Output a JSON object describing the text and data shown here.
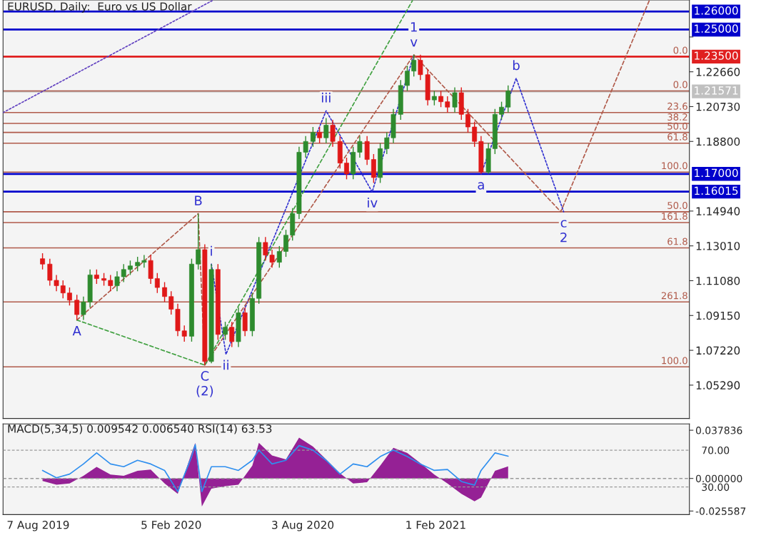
{
  "chart_data": [
    {
      "type": "candlestick",
      "title": "EURUSD, Daily:  Euro vs US Dollar",
      "x": [
        "2019-08-13",
        "2019-08-23",
        "2019-09-01",
        "2019-09-10",
        "2019-09-19",
        "2019-09-29",
        "2019-10-08",
        "2019-10-17",
        "2019-10-26",
        "2019-11-05",
        "2019-11-14",
        "2019-11-23",
        "2019-12-02",
        "2019-12-11",
        "2019-12-21",
        "2019-12-30",
        "2020-01-08",
        "2020-01-17",
        "2020-01-27",
        "2020-02-05",
        "2020-02-14",
        "2020-02-23",
        "2020-03-04",
        "2020-03-13",
        "2020-03-22",
        "2020-03-31",
        "2020-04-09",
        "2020-04-19",
        "2020-04-28",
        "2020-05-07",
        "2020-05-16",
        "2020-05-26",
        "2020-06-04",
        "2020-06-13",
        "2020-06-22",
        "2020-07-02",
        "2020-07-11",
        "2020-07-20",
        "2020-07-29",
        "2020-08-07",
        "2020-08-17",
        "2020-08-26",
        "2020-09-04",
        "2020-09-13",
        "2020-09-23",
        "2020-10-02",
        "2020-10-11",
        "2020-10-20",
        "2020-10-30",
        "2020-11-08",
        "2020-11-17",
        "2020-11-26",
        "2020-12-05",
        "2020-12-15",
        "2020-12-24",
        "2021-01-02",
        "2021-01-11",
        "2021-01-21",
        "2021-01-30",
        "2021-02-08",
        "2021-02-17",
        "2021-02-27",
        "2021-03-08",
        "2021-03-17",
        "2021-03-26",
        "2021-04-04",
        "2021-04-14",
        "2021-04-23",
        "2021-05-02",
        "2021-05-11"
      ],
      "ohlc": [
        [
          1.123,
          1.126,
          1.117,
          1.12
        ],
        [
          1.12,
          1.123,
          1.108,
          1.111
        ],
        [
          1.111,
          1.114,
          1.105,
          1.108
        ],
        [
          1.108,
          1.111,
          1.101,
          1.104
        ],
        [
          1.104,
          1.107,
          1.097,
          1.1
        ],
        [
          1.1,
          1.103,
          1.089,
          1.092
        ],
        [
          1.092,
          1.102,
          1.089,
          1.099
        ],
        [
          1.099,
          1.117,
          1.096,
          1.114
        ],
        [
          1.114,
          1.117,
          1.109,
          1.112
        ],
        [
          1.112,
          1.115,
          1.108,
          1.111
        ],
        [
          1.111,
          1.114,
          1.105,
          1.108
        ],
        [
          1.108,
          1.116,
          1.105,
          1.113
        ],
        [
          1.113,
          1.12,
          1.11,
          1.117
        ],
        [
          1.117,
          1.122,
          1.114,
          1.119
        ],
        [
          1.119,
          1.124,
          1.116,
          1.121
        ],
        [
          1.121,
          1.125,
          1.118,
          1.122
        ],
        [
          1.122,
          1.125,
          1.109,
          1.112
        ],
        [
          1.112,
          1.115,
          1.104,
          1.107
        ],
        [
          1.107,
          1.11,
          1.099,
          1.102
        ],
        [
          1.102,
          1.105,
          1.092,
          1.095
        ],
        [
          1.095,
          1.098,
          1.08,
          1.083
        ],
        [
          1.083,
          1.086,
          1.077,
          1.08
        ],
        [
          1.08,
          1.123,
          1.077,
          1.12
        ],
        [
          1.12,
          1.148,
          1.117,
          1.128
        ],
        [
          1.128,
          1.131,
          1.064,
          1.066
        ],
        [
          1.066,
          1.12,
          1.065,
          1.117
        ],
        [
          1.117,
          1.12,
          1.078,
          1.081
        ],
        [
          1.081,
          1.088,
          1.078,
          1.085
        ],
        [
          1.085,
          1.088,
          1.074,
          1.077
        ],
        [
          1.077,
          1.096,
          1.074,
          1.093
        ],
        [
          1.093,
          1.096,
          1.08,
          1.083
        ],
        [
          1.083,
          1.104,
          1.08,
          1.101
        ],
        [
          1.101,
          1.135,
          1.098,
          1.132
        ],
        [
          1.132,
          1.135,
          1.122,
          1.125
        ],
        [
          1.125,
          1.128,
          1.118,
          1.121
        ],
        [
          1.121,
          1.13,
          1.118,
          1.127
        ],
        [
          1.127,
          1.139,
          1.124,
          1.136
        ],
        [
          1.136,
          1.151,
          1.133,
          1.148
        ],
        [
          1.148,
          1.185,
          1.145,
          1.182
        ],
        [
          1.182,
          1.191,
          1.179,
          1.188
        ],
        [
          1.188,
          1.196,
          1.185,
          1.193
        ],
        [
          1.193,
          1.196,
          1.187,
          1.19
        ],
        [
          1.19,
          1.201,
          1.187,
          1.197
        ],
        [
          1.197,
          1.2,
          1.185,
          1.188
        ],
        [
          1.188,
          1.191,
          1.173,
          1.176
        ],
        [
          1.176,
          1.179,
          1.167,
          1.17
        ],
        [
          1.17,
          1.185,
          1.167,
          1.182
        ],
        [
          1.182,
          1.191,
          1.179,
          1.188
        ],
        [
          1.188,
          1.191,
          1.175,
          1.178
        ],
        [
          1.178,
          1.181,
          1.165,
          1.168
        ],
        [
          1.168,
          1.187,
          1.165,
          1.184
        ],
        [
          1.184,
          1.193,
          1.181,
          1.19
        ],
        [
          1.19,
          1.206,
          1.187,
          1.203
        ],
        [
          1.203,
          1.222,
          1.2,
          1.219
        ],
        [
          1.219,
          1.23,
          1.216,
          1.227
        ],
        [
          1.227,
          1.236,
          1.224,
          1.233
        ],
        [
          1.233,
          1.236,
          1.222,
          1.225
        ],
        [
          1.225,
          1.228,
          1.208,
          1.211
        ],
        [
          1.211,
          1.216,
          1.208,
          1.213
        ],
        [
          1.213,
          1.216,
          1.207,
          1.21
        ],
        [
          1.21,
          1.213,
          1.204,
          1.207
        ],
        [
          1.207,
          1.218,
          1.204,
          1.215
        ],
        [
          1.215,
          1.218,
          1.2,
          1.203
        ],
        [
          1.203,
          1.206,
          1.193,
          1.196
        ],
        [
          1.196,
          1.199,
          1.185,
          1.188
        ],
        [
          1.188,
          1.191,
          1.17,
          1.171
        ],
        [
          1.171,
          1.187,
          1.17,
          1.184
        ],
        [
          1.184,
          1.206,
          1.181,
          1.203
        ],
        [
          1.203,
          1.21,
          1.2,
          1.207
        ],
        [
          1.207,
          1.219,
          1.204,
          1.216
        ]
      ],
      "series": [
        {
          "type": "line",
          "color": "#3030d0",
          "line_style": "dotted",
          "x": [
            "2020-03-31",
            "2020-04-20",
            "2020-09-04",
            "2020-11-06",
            "2021-01-02"
          ],
          "values": [
            1.12,
            1.07,
            1.205,
            1.16,
            1.236
          ]
        },
        {
          "type": "line",
          "color": "#3030d0",
          "line_style": "dotted",
          "x": [
            "2021-04-04",
            "2021-05-22",
            "2021-07-26"
          ],
          "values": [
            1.17,
            1.223,
            1.149
          ]
        },
        {
          "type": "line",
          "color": "#b05a4a",
          "line_style": "dashed",
          "x": [
            "2019-09-29",
            "2020-03-13",
            "2020-03-22"
          ],
          "values": [
            1.089,
            1.148,
            1.064
          ]
        },
        {
          "type": "line",
          "color": "#b05a4a",
          "line_style": "dashed",
          "x": [
            "2020-03-22",
            "2021-01-02"
          ],
          "values": [
            1.064,
            1.236
          ]
        },
        {
          "type": "line",
          "color": "#b05a4a",
          "line_style": "dashed",
          "x": [
            "2021-01-02",
            "2021-07-22",
            "2021-11-20"
          ],
          "values": [
            1.236,
            1.149,
            1.266
          ]
        },
        {
          "type": "line",
          "color": "#40a040",
          "line_style": "dashed",
          "x": [
            "2019-09-29",
            "2020-03-22",
            "2020-12-31"
          ],
          "values": [
            1.089,
            1.064,
            1.266
          ]
        },
        {
          "type": "line",
          "color": "#6040c0",
          "line_style": "dotted",
          "x": [
            "2019-06-20",
            "2020-04-01"
          ],
          "values": [
            1.204,
            1.266
          ]
        }
      ],
      "ref_lines": [
        {
          "axis": "y",
          "value": 1.26,
          "label": "1.26000",
          "color": "#0000cc"
        },
        {
          "axis": "y",
          "value": 1.25,
          "label": "1.25000",
          "color": "#0000cc"
        },
        {
          "axis": "y",
          "value": 1.235,
          "label": "1.23500",
          "color": "#e02020"
        },
        {
          "axis": "y",
          "value": 1.21571,
          "label": "1.21571",
          "color": "#c0c0c0"
        },
        {
          "axis": "y",
          "value": 1.17,
          "label": "1.17000",
          "color": "#0000cc"
        },
        {
          "axis": "y",
          "value": 1.16015,
          "label": "1.16015",
          "color": "#0000cc"
        },
        {
          "axis": "y",
          "value": 1.216,
          "color": "#b05a4a"
        },
        {
          "axis": "y",
          "value": 1.204,
          "color": "#b05a4a"
        },
        {
          "axis": "y",
          "value": 1.198,
          "color": "#b05a4a"
        },
        {
          "axis": "y",
          "value": 1.193,
          "color": "#b05a4a"
        },
        {
          "axis": "y",
          "value": 1.187,
          "color": "#b05a4a"
        },
        {
          "axis": "y",
          "value": 1.171,
          "color": "#b05a4a"
        },
        {
          "axis": "y",
          "value": 1.149,
          "color": "#b05a4a"
        },
        {
          "axis": "y",
          "value": 1.143,
          "color": "#b05a4a"
        },
        {
          "axis": "y",
          "value": 1.129,
          "color": "#b05a4a"
        },
        {
          "axis": "y",
          "value": 1.099,
          "color": "#b05a4a"
        },
        {
          "axis": "y",
          "value": 1.063,
          "color": "#b05a4a"
        }
      ],
      "annotations": [
        {
          "text": "A",
          "x": "2019-09-29",
          "y": 1.089
        },
        {
          "text": "B",
          "x": "2020-03-13",
          "y": 1.148
        },
        {
          "text": "C",
          "x": "2020-03-22",
          "y": 1.064
        },
        {
          "text": "(2)",
          "x": "2020-03-22",
          "y": 1.064
        },
        {
          "text": "i",
          "x": "2020-03-31",
          "y": 1.12
        },
        {
          "text": "ii",
          "x": "2020-04-20",
          "y": 1.07
        },
        {
          "text": "iii",
          "x": "2020-09-04",
          "y": 1.205
        },
        {
          "text": "iv",
          "x": "2020-11-06",
          "y": 1.16
        },
        {
          "text": "v",
          "x": "2021-01-02",
          "y": 1.236
        },
        {
          "text": "1",
          "x": "2021-01-02",
          "y": 1.236
        },
        {
          "text": "a",
          "x": "2021-04-04",
          "y": 1.17
        },
        {
          "text": "b",
          "x": "2021-05-22",
          "y": 1.223
        },
        {
          "text": "c",
          "x": "2021-07-26",
          "y": 1.149
        },
        {
          "text": "2",
          "x": "2021-07-26",
          "y": 1.149
        },
        {
          "text": "0.0",
          "x": "2022-01-12",
          "y": 1.235
        },
        {
          "text": "0.0",
          "x": "2022-01-12",
          "y": 1.216
        },
        {
          "text": "23.6",
          "x": "2022-01-12",
          "y": 1.204
        },
        {
          "text": "38.2",
          "x": "2022-01-12",
          "y": 1.198
        },
        {
          "text": "50.0",
          "x": "2022-01-12",
          "y": 1.193
        },
        {
          "text": "61.8",
          "x": "2022-01-12",
          "y": 1.187
        },
        {
          "text": "100.0",
          "x": "2022-01-12",
          "y": 1.171
        },
        {
          "text": "50.0",
          "x": "2022-01-12",
          "y": 1.149
        },
        {
          "text": "161.8",
          "x": "2022-01-12",
          "y": 1.143
        },
        {
          "text": "61.8",
          "x": "2022-01-12",
          "y": 1.129
        },
        {
          "text": "261.8",
          "x": "2022-01-12",
          "y": 1.099
        },
        {
          "text": "100.0",
          "x": "2022-01-12",
          "y": 1.063
        }
      ],
      "xlim": [
        "2019-06-20",
        "2022-01-14"
      ],
      "xticks": [
        {
          "value": "2019-08-07",
          "label": null
        },
        {
          "value": "2020-02-05",
          "label": null
        },
        {
          "value": "2020-08-03",
          "label": null
        },
        {
          "value": "2021-02-01",
          "label": null
        }
      ],
      "ylim": [
        1.0344,
        1.2664
      ],
      "yticks": [
        {
          "value": 1.0529,
          "label": "1.05290"
        },
        {
          "value": 1.0722,
          "label": "1.07220"
        },
        {
          "value": 1.0915,
          "label": "1.09150"
        },
        {
          "value": 1.1108,
          "label": "1.11080"
        },
        {
          "value": 1.1301,
          "label": "1.13010"
        },
        {
          "value": 1.1494,
          "label": "1.14940"
        },
        {
          "value": 1.188,
          "label": "1.18800"
        },
        {
          "value": 1.2073,
          "label": "1.20730"
        },
        {
          "value": 1.2266,
          "label": "1.22660"
        },
        {
          "value": 1.2459,
          "label": null
        }
      ],
      "tick_labels": "y"
    },
    {
      "type": "area",
      "title": "MACD(5,34,5) 0.009542 0.006540 RSI(14) 63.53",
      "x": [
        "2019-08-13",
        "2019-09-01",
        "2019-09-19",
        "2019-10-08",
        "2019-10-26",
        "2019-11-14",
        "2019-12-02",
        "2019-12-21",
        "2020-01-08",
        "2020-01-27",
        "2020-02-14",
        "2020-03-04",
        "2020-03-09",
        "2020-03-18",
        "2020-03-31",
        "2020-04-19",
        "2020-05-07",
        "2020-05-26",
        "2020-06-04",
        "2020-06-22",
        "2020-07-11",
        "2020-07-29",
        "2020-08-17",
        "2020-09-04",
        "2020-09-23",
        "2020-10-11",
        "2020-10-30",
        "2020-11-17",
        "2020-12-05",
        "2020-12-24",
        "2021-01-11",
        "2021-01-30",
        "2021-02-17",
        "2021-03-08",
        "2021-03-26",
        "2021-04-04",
        "2021-04-23",
        "2021-05-11"
      ],
      "series": [
        {
          "type": "area",
          "color": "#8b0a8b",
          "values": [
            -0.002,
            -0.005,
            -0.004,
            0.002,
            0.009,
            0.003,
            0.002,
            0.006,
            0.007,
            -0.004,
            -0.012,
            0.02,
            0.028,
            -0.022,
            -0.008,
            -0.006,
            -0.005,
            0.01,
            0.028,
            0.018,
            0.015,
            0.032,
            0.025,
            0.015,
            0.004,
            -0.004,
            -0.003,
            0.01,
            0.024,
            0.02,
            0.012,
            0.003,
            -0.004,
            -0.012,
            -0.018,
            -0.015,
            0.006,
            0.0095
          ]
        },
        {
          "type": "line",
          "axis": "y2",
          "color": "#2f8fef",
          "values": [
            48,
            40,
            44,
            55,
            67,
            55,
            52,
            59,
            55,
            48,
            25,
            63,
            76,
            25,
            52,
            52,
            48,
            59,
            70,
            55,
            59,
            75,
            70,
            59,
            44,
            55,
            52,
            63,
            70,
            63,
            55,
            48,
            49,
            36,
            32,
            48,
            67,
            63.5
          ]
        }
      ],
      "ref_lines": [
        {
          "axis": "y",
          "value": 0,
          "color": "#999999",
          "line_style": "dashed"
        }
      ],
      "grid": "y",
      "xlim": [
        "2019-06-20",
        "2022-01-14"
      ],
      "xticks": [
        {
          "value": "2019-08-07",
          "label": "7 Aug 2019"
        },
        {
          "value": "2020-02-05",
          "label": "5 Feb 2020"
        },
        {
          "value": "2020-08-03",
          "label": "3 Aug 2020"
        },
        {
          "value": "2021-02-01",
          "label": "1 Feb 2021"
        }
      ],
      "ylim": [
        -0.0284,
        0.0428
      ],
      "yticks": [
        {
          "value": 0.037836,
          "label": "0.037836"
        },
        {
          "value": 0,
          "label": "0.000000"
        },
        {
          "value": -0.025587,
          "label": "-0.025587"
        }
      ],
      "y2lim": [
        0,
        98.5
      ],
      "y2ticks": [
        {
          "value": 70,
          "label": "70.00"
        },
        {
          "value": 30,
          "label": "30.00"
        }
      ]
    }
  ]
}
